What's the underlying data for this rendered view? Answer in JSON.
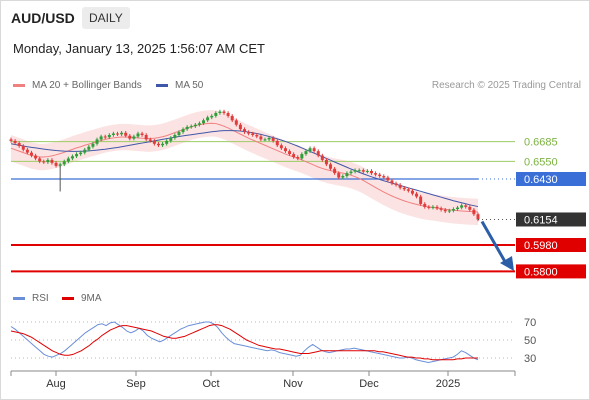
{
  "header": {
    "symbol": "AUD/USD",
    "timeframe": "DAILY",
    "datetime": "Monday, January 13, 2025 1:56:07 AM CET"
  },
  "legend": {
    "ma20": {
      "label": "MA 20 + Bollinger Bands",
      "color": "#f08080"
    },
    "ma50": {
      "label": "MA 50",
      "color": "#3f57a8"
    },
    "credit": "Research © 2025 Trading Central",
    "rsi": {
      "label": "RSI",
      "color": "#6a8fd8"
    },
    "ma9": {
      "label": "9MA",
      "color": "#e00000"
    }
  },
  "colors": {
    "up": "#2e9e3a",
    "down": "#e23b3b",
    "resistance_line": "#9ccc65",
    "pivot": "#3a6fd8",
    "support": "#e00000",
    "arrow": "#2c5ea8",
    "last_price_bg": "#333333"
  },
  "chart_data": [
    {
      "type": "candlestick",
      "title": "AUD/USD",
      "interval": "daily",
      "x_labels": [
        "Aug",
        "Sep",
        "Oct",
        "Nov",
        "Dec",
        "2025"
      ],
      "ylim": [
        0.575,
        0.695
      ],
      "last_price": 0.6154,
      "levels": [
        {
          "value": 0.6685,
          "label": "0.6685",
          "kind": "resistance"
        },
        {
          "value": 0.655,
          "label": "0.6550",
          "kind": "resistance"
        },
        {
          "value": 0.643,
          "label": "0.6430",
          "kind": "pivot"
        },
        {
          "value": 0.598,
          "label": "0.5980",
          "kind": "support"
        },
        {
          "value": 0.58,
          "label": "0.5800",
          "kind": "support"
        }
      ],
      "close_series": [
        0.669,
        0.6675,
        0.6655,
        0.663,
        0.661,
        0.659,
        0.657,
        0.655,
        0.6545,
        0.656,
        0.654,
        0.652,
        0.653,
        0.655,
        0.657,
        0.6585,
        0.66,
        0.661,
        0.663,
        0.665,
        0.667,
        0.67,
        0.672,
        0.6715,
        0.673,
        0.674,
        0.6735,
        0.6745,
        0.6725,
        0.6705,
        0.672,
        0.674,
        0.673,
        0.67,
        0.669,
        0.667,
        0.666,
        0.667,
        0.669,
        0.671,
        0.673,
        0.675,
        0.677,
        0.6785,
        0.679,
        0.68,
        0.681,
        0.683,
        0.685,
        0.686,
        0.688,
        0.689,
        0.688,
        0.686,
        0.683,
        0.68,
        0.677,
        0.675,
        0.674,
        0.673,
        0.672,
        0.67,
        0.67,
        0.671,
        0.669,
        0.666,
        0.664,
        0.662,
        0.66,
        0.658,
        0.657,
        0.66,
        0.662,
        0.664,
        0.662,
        0.659,
        0.656,
        0.653,
        0.65,
        0.647,
        0.644,
        0.645,
        0.647,
        0.648,
        0.649,
        0.649,
        0.648,
        0.6485,
        0.647,
        0.646,
        0.645,
        0.644,
        0.642,
        0.64,
        0.639,
        0.637,
        0.636,
        0.635,
        0.633,
        0.631,
        0.626,
        0.624,
        0.6235,
        0.624,
        0.623,
        0.622,
        0.621,
        0.6215,
        0.6225,
        0.6235,
        0.625,
        0.624,
        0.622,
        0.619,
        0.6154
      ],
      "ma20_series": [
        0.664,
        0.663,
        0.662,
        0.661,
        0.66,
        0.659,
        0.6585,
        0.658,
        0.658,
        0.6583,
        0.6588,
        0.6595,
        0.6603,
        0.6612,
        0.6622,
        0.6632,
        0.6642,
        0.665,
        0.666,
        0.6668,
        0.6676,
        0.6684,
        0.6692,
        0.67,
        0.6706,
        0.671,
        0.6714,
        0.6716,
        0.6716,
        0.6715,
        0.6712,
        0.671,
        0.6708,
        0.6706,
        0.6706,
        0.6708,
        0.6712,
        0.6718,
        0.6726,
        0.6736,
        0.6746,
        0.6756,
        0.6766,
        0.6776,
        0.6786,
        0.6794,
        0.68,
        0.6805,
        0.6808,
        0.681,
        0.6808,
        0.68,
        0.679,
        0.6778,
        0.6764,
        0.675,
        0.6736,
        0.6722,
        0.6708,
        0.6696,
        0.6684,
        0.6672,
        0.666,
        0.6648,
        0.6636,
        0.6624,
        0.6612,
        0.66,
        0.659,
        0.658,
        0.657,
        0.656,
        0.6548,
        0.6536,
        0.6524,
        0.6512,
        0.6502,
        0.6494,
        0.6487,
        0.6481,
        0.6475,
        0.647,
        0.6464,
        0.6456,
        0.6446,
        0.6434,
        0.642,
        0.6404,
        0.6388,
        0.6372,
        0.6356,
        0.6341,
        0.6327,
        0.6314,
        0.6302,
        0.6291,
        0.6281,
        0.6272,
        0.6264,
        0.6257,
        0.625,
        0.6244,
        0.624,
        0.6236,
        0.6232,
        0.6228,
        0.6224,
        0.622,
        0.6217,
        0.6214,
        0.6212,
        0.621,
        0.6208,
        0.6207,
        0.6205
      ],
      "ma50_series": [
        0.667,
        0.6665,
        0.666,
        0.6655,
        0.665,
        0.6646,
        0.6642,
        0.6638,
        0.6634,
        0.663,
        0.6627,
        0.6624,
        0.6622,
        0.662,
        0.6619,
        0.6618,
        0.6618,
        0.6619,
        0.662,
        0.6622,
        0.6624,
        0.6627,
        0.663,
        0.6633,
        0.6637,
        0.6641,
        0.6645,
        0.665,
        0.6655,
        0.666,
        0.6665,
        0.667,
        0.6675,
        0.668,
        0.6685,
        0.669,
        0.6695,
        0.67,
        0.6705,
        0.671,
        0.6715,
        0.672,
        0.6724,
        0.6728,
        0.6732,
        0.6736,
        0.674,
        0.6744,
        0.6748,
        0.6752,
        0.6755,
        0.6758,
        0.676,
        0.676,
        0.676,
        0.6759,
        0.6757,
        0.6754,
        0.675,
        0.6745,
        0.674,
        0.6734,
        0.6727,
        0.672,
        0.6712,
        0.6704,
        0.6695,
        0.6686,
        0.6676,
        0.6665,
        0.6654,
        0.6642,
        0.663,
        0.6618,
        0.6606,
        0.6594,
        0.6582,
        0.657,
        0.6558,
        0.6546,
        0.6534,
        0.6522,
        0.651,
        0.6498,
        0.6487,
        0.6476,
        0.6465,
        0.6455,
        0.6445,
        0.6436,
        0.6427,
        0.6418,
        0.641,
        0.6402,
        0.6394,
        0.6386,
        0.6378,
        0.637,
        0.6362,
        0.6354,
        0.6346,
        0.6338,
        0.633,
        0.6322,
        0.6314,
        0.6306,
        0.6298,
        0.629,
        0.6282,
        0.6275,
        0.6268,
        0.6261,
        0.6254,
        0.6248,
        0.6242
      ],
      "bb_width": 0.009
    },
    {
      "type": "line",
      "title": "RSI",
      "y_ticks": [
        70,
        50,
        30
      ],
      "ylim": [
        20,
        80
      ],
      "series": [
        {
          "name": "RSI",
          "values": [
            65,
            62,
            58,
            54,
            50,
            46,
            42,
            38,
            34,
            32,
            31,
            33,
            35,
            38,
            42,
            46,
            50,
            54,
            58,
            61,
            64,
            67,
            68,
            66,
            69,
            70,
            67,
            64,
            60,
            58,
            60,
            63,
            60,
            55,
            52,
            50,
            48,
            50,
            53,
            56,
            59,
            62,
            64,
            66,
            67,
            68,
            69,
            70,
            70,
            68,
            64,
            58,
            53,
            49,
            46,
            45,
            44,
            43,
            42,
            41,
            40,
            39,
            38,
            39,
            38,
            36,
            35,
            34,
            33,
            32,
            33,
            38,
            42,
            45,
            42,
            39,
            37,
            36,
            37,
            38,
            39,
            40,
            40,
            41,
            40,
            39,
            38,
            37,
            36,
            35,
            34,
            33,
            32,
            31,
            30,
            30,
            31,
            30,
            28,
            27,
            26,
            25,
            26,
            27,
            28,
            29,
            30,
            31,
            34,
            38,
            36,
            33,
            30,
            28
          ]
        },
        {
          "name": "9MA",
          "values": [
            60,
            59,
            58,
            57,
            55,
            53,
            50,
            47,
            44,
            41,
            38,
            36,
            34,
            33,
            33,
            34,
            36,
            38,
            41,
            44,
            48,
            51,
            55,
            58,
            61,
            63,
            65,
            66,
            66,
            65,
            64,
            63,
            62,
            61,
            60,
            58,
            56,
            54,
            53,
            52,
            52,
            53,
            54,
            56,
            58,
            60,
            62,
            64,
            66,
            67,
            67,
            66,
            64,
            62,
            59,
            56,
            53,
            50,
            48,
            46,
            44,
            43,
            42,
            41,
            40,
            40,
            39,
            38,
            37,
            36,
            35,
            35,
            35,
            36,
            37,
            38,
            38,
            38,
            38,
            38,
            38,
            38,
            38,
            38,
            38,
            38,
            38,
            38,
            38,
            37,
            37,
            36,
            35,
            34,
            33,
            32,
            31,
            31,
            30,
            30,
            29,
            29,
            28,
            28,
            28,
            28,
            28,
            28,
            29,
            29,
            30,
            30,
            30,
            30
          ]
        }
      ]
    }
  ]
}
